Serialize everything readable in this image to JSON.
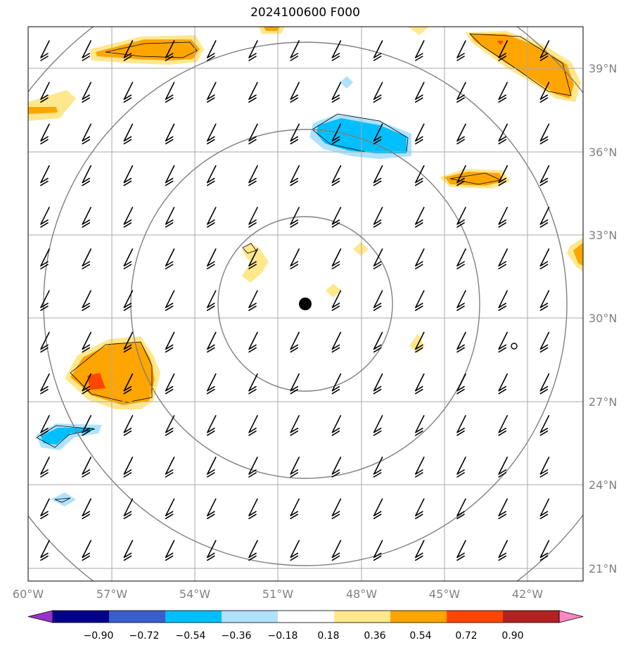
{
  "title": "2024100600 F000",
  "lon_labels": [
    "60°W",
    "57°W",
    "54°W",
    "51°W",
    "48°W",
    "45°W",
    "42°W"
  ],
  "lat_labels": [
    "39°N",
    "36°N",
    "33°N",
    "30°N",
    "27°N",
    "24°N",
    "21°N"
  ],
  "colorbar": {
    "labels": [
      "−0.90",
      "−0.72",
      "−0.54",
      "−0.36",
      "−0.18",
      "0.18",
      "0.36",
      "0.54",
      "0.72",
      "0.90"
    ],
    "colors": [
      "#9932cc",
      "#00008b",
      "#3a5fcd",
      "#00bfff",
      "#b0e2ff",
      "#ffffff",
      "#ffe78c",
      "#ffa500",
      "#ff4500",
      "#b22222",
      "#ff86c1"
    ]
  },
  "center": {
    "lon": -50.0,
    "lat": 30.5
  },
  "field_colors": {
    "pos1": "#ffe78c",
    "pos2": "#ffa500",
    "pos3": "#ff4500",
    "neg1": "#b0e2ff",
    "neg2": "#00bfff"
  }
}
